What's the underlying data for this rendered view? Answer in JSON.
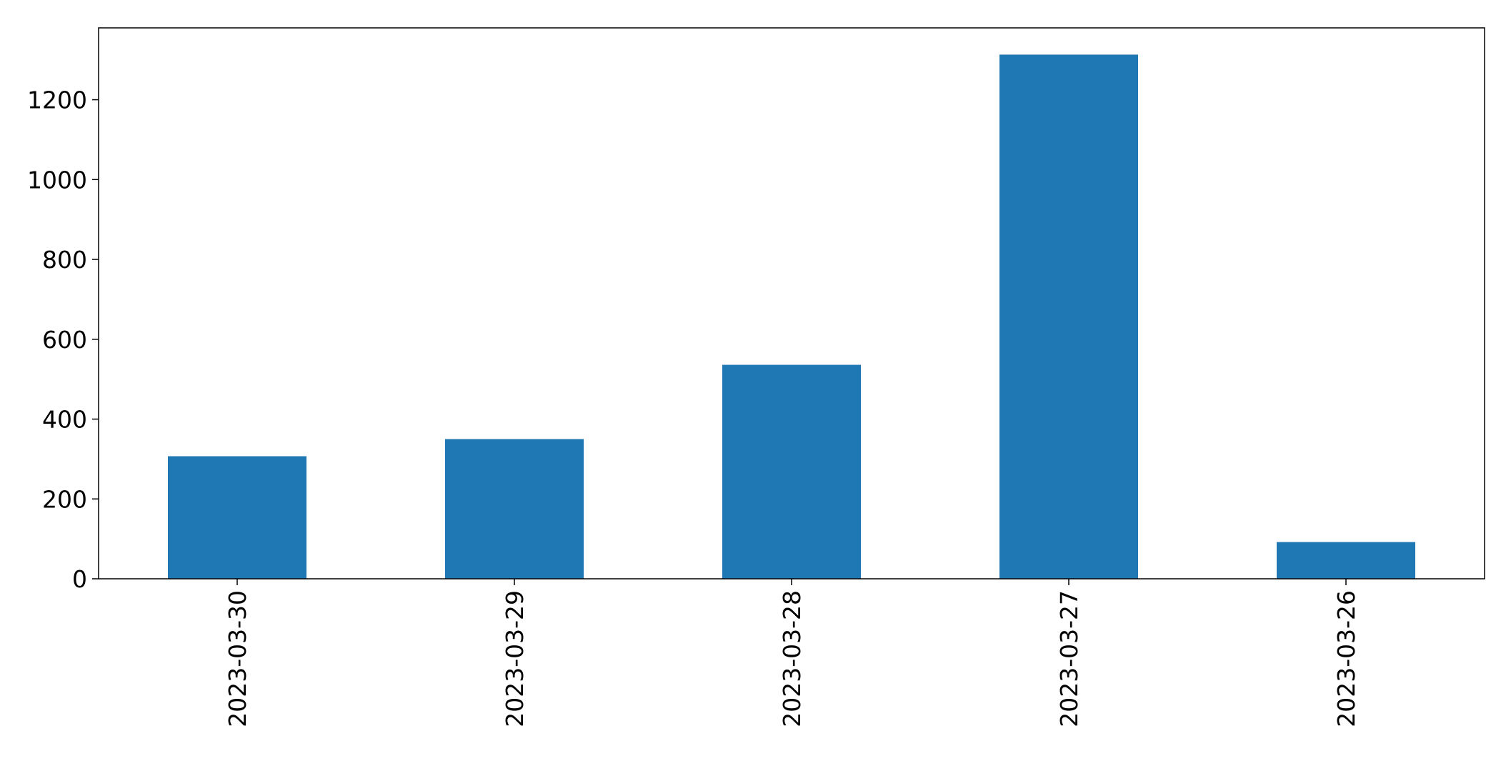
{
  "chart_data": {
    "type": "bar",
    "title": "",
    "xlabel": "",
    "ylabel": "",
    "categories": [
      "2023-03-30",
      "2023-03-29",
      "2023-03-28",
      "2023-03-27",
      "2023-03-26"
    ],
    "values": [
      307,
      350,
      536,
      1313,
      92
    ],
    "ylim": [
      0,
      1380
    ],
    "yticks": [
      0,
      200,
      400,
      600,
      800,
      1000,
      1200
    ],
    "grid": false,
    "legend": "none",
    "bar_color": "#1f77b4",
    "xtick_rotation": "vertical"
  }
}
